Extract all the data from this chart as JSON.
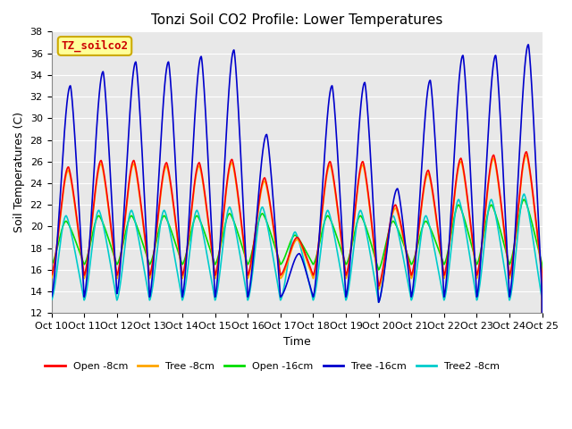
{
  "title": "Tonzi Soil CO2 Profile: Lower Temperatures",
  "xlabel": "Time",
  "ylabel": "Soil Temperatures (C)",
  "ylim": [
    12,
    38
  ],
  "xtick_labels": [
    "Oct 10",
    "Oct 11",
    "Oct 12",
    "Oct 13",
    "Oct 14",
    "Oct 15",
    "Oct 16",
    "Oct 17",
    "Oct 18",
    "Oct 19",
    "Oct 20",
    "Oct 21",
    "Oct 22",
    "Oct 23",
    "Oct 24",
    "Oct 25"
  ],
  "ytick_values": [
    12,
    14,
    16,
    18,
    20,
    22,
    24,
    26,
    28,
    30,
    32,
    34,
    36,
    38
  ],
  "series": {
    "Open -8cm": {
      "color": "#FF0000",
      "lw": 1.2
    },
    "Tree -8cm": {
      "color": "#FFA500",
      "lw": 1.2
    },
    "Open -16cm": {
      "color": "#00DD00",
      "lw": 1.2
    },
    "Tree -16cm": {
      "color": "#0000CC",
      "lw": 1.2
    },
    "Tree2 -8cm": {
      "color": "#00CCCC",
      "lw": 1.2
    }
  },
  "plot_bg_color": "#E8E8E8",
  "legend_box_color": "#FFFF99",
  "legend_box_edge": "#CCAA00",
  "annotation_text": "TZ_soilco2",
  "annotation_color": "#CC0000",
  "title_fontsize": 11,
  "axis_fontsize": 9,
  "tick_fontsize": 8,
  "day_peaks_tree16": [
    33.0,
    34.3,
    35.2,
    35.2,
    35.7,
    36.3,
    28.5,
    17.5,
    33.0,
    33.3,
    23.5,
    33.5,
    35.8,
    35.8,
    36.8
  ],
  "day_peaks_open8": [
    25.5,
    26.1,
    26.1,
    25.9,
    25.9,
    26.2,
    24.5,
    19.0,
    26.0,
    26.0,
    22.0,
    25.2,
    26.3,
    26.6,
    26.9
  ],
  "day_peaks_tree8": [
    25.2,
    25.8,
    25.8,
    25.6,
    25.6,
    25.9,
    24.2,
    18.8,
    25.7,
    25.7,
    21.7,
    24.9,
    26.0,
    26.3,
    26.6
  ],
  "day_peaks_open16": [
    20.5,
    21.0,
    21.0,
    21.0,
    21.0,
    21.2,
    21.2,
    19.2,
    21.0,
    21.0,
    20.5,
    20.5,
    22.0,
    22.0,
    22.5
  ],
  "day_peaks_tree2": [
    21.0,
    21.5,
    21.5,
    21.5,
    21.5,
    21.8,
    21.8,
    19.5,
    21.5,
    21.5,
    21.0,
    21.0,
    22.5,
    22.5,
    23.0
  ],
  "day_mins_tree16": [
    13.5,
    13.5,
    13.8,
    13.5,
    13.5,
    13.5,
    13.5,
    13.5,
    13.5,
    13.5,
    13.0,
    13.5,
    13.5,
    13.5,
    13.5
  ],
  "day_mins_open8": [
    15.5,
    15.5,
    15.5,
    15.5,
    15.5,
    15.5,
    15.5,
    15.5,
    15.5,
    15.5,
    14.5,
    15.5,
    15.5,
    15.5,
    15.5
  ],
  "day_mins_tree8": [
    15.2,
    15.2,
    15.2,
    15.2,
    15.2,
    15.2,
    15.2,
    15.2,
    15.2,
    15.2,
    14.2,
    15.2,
    15.2,
    15.2,
    15.2
  ],
  "day_mins_open16": [
    16.5,
    16.5,
    16.5,
    16.5,
    16.5,
    16.5,
    16.5,
    16.5,
    16.5,
    16.5,
    16.0,
    16.5,
    16.5,
    16.5,
    16.5
  ],
  "day_mins_tree2": [
    13.2,
    13.2,
    13.2,
    13.2,
    13.2,
    13.2,
    13.2,
    13.2,
    13.2,
    13.2,
    13.0,
    13.2,
    13.2,
    13.2,
    13.2
  ]
}
